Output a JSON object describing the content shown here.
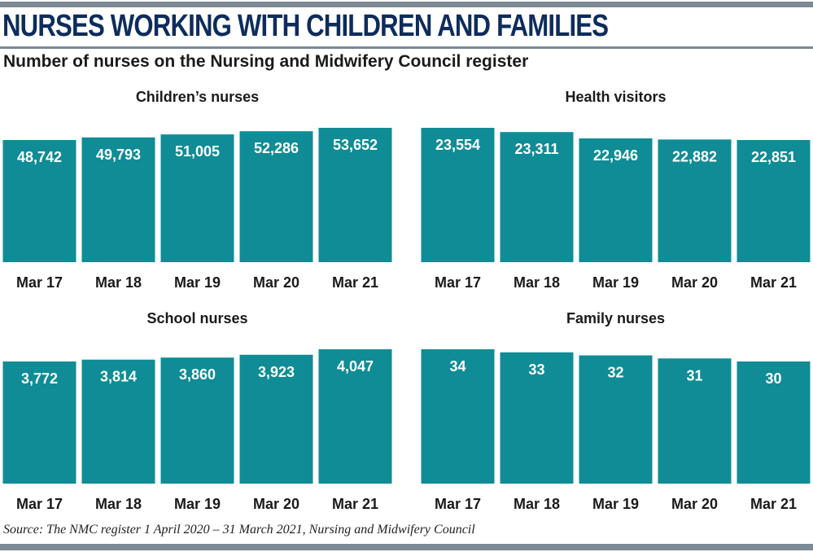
{
  "title": "NURSES WORKING WITH CHILDREN AND FAMILIES",
  "subtitle": "Number of nurses on the Nursing and Midwifery Council register",
  "source": "Source: The NMC register 1 April 2020 – 31 March 2021, Nursing and Midwifery Council",
  "colors": {
    "bar": "#0f8c96",
    "headline": "#0e2c5c",
    "rule": "#7b8a94"
  },
  "chart_data": [
    {
      "type": "bar",
      "title": "Children’s nurses",
      "categories": [
        "Mar 17",
        "Mar 18",
        "Mar 19",
        "Mar 20",
        "Mar 21"
      ],
      "values": [
        48742,
        49793,
        51005,
        52286,
        53652
      ],
      "labels": [
        "48,742",
        "49,793",
        "51,005",
        "52,286",
        "53,652"
      ],
      "grid": false
    },
    {
      "type": "bar",
      "title": "Health visitors",
      "categories": [
        "Mar 17",
        "Mar 18",
        "Mar 19",
        "Mar 20",
        "Mar 21"
      ],
      "values": [
        23554,
        23311,
        22946,
        22882,
        22851
      ],
      "labels": [
        "23,554",
        "23,311",
        "22,946",
        "22,882",
        "22,851"
      ],
      "grid": false
    },
    {
      "type": "bar",
      "title": "School nurses",
      "categories": [
        "Mar 17",
        "Mar 18",
        "Mar 19",
        "Mar 20",
        "Mar 21"
      ],
      "values": [
        3772,
        3814,
        3860,
        3923,
        4047
      ],
      "labels": [
        "3,772",
        "3,814",
        "3,860",
        "3,923",
        "4,047"
      ],
      "grid": false
    },
    {
      "type": "bar",
      "title": "Family nurses",
      "categories": [
        "Mar 17",
        "Mar 18",
        "Mar 19",
        "Mar 20",
        "Mar 21"
      ],
      "values": [
        34,
        33,
        32,
        31,
        30
      ],
      "labels": [
        "34",
        "33",
        "32",
        "31",
        "30"
      ],
      "grid": false
    }
  ]
}
